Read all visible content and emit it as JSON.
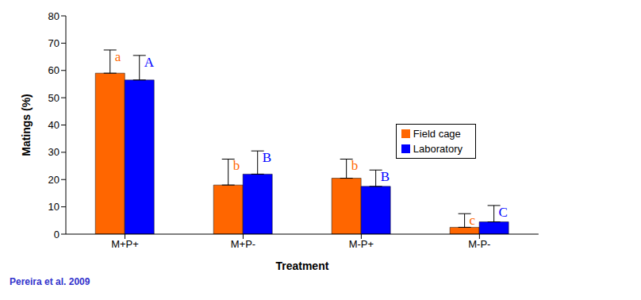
{
  "chart_data": {
    "type": "bar",
    "x_label": "Treatment",
    "y_label": "Matings (%)",
    "categories": [
      "M+P+",
      "M+P-",
      "M-P+",
      "M-P-"
    ],
    "series": [
      {
        "name": "Field cage",
        "color": "#ff6600",
        "values": [
          59,
          18,
          20.5,
          2.5
        ],
        "errors": [
          8.5,
          9.5,
          7,
          5
        ],
        "letters": [
          "a",
          "b",
          "b",
          "c"
        ]
      },
      {
        "name": "Laboratory",
        "color": "#0000ff",
        "values": [
          56.5,
          22,
          17.5,
          4.5
        ],
        "errors": [
          9,
          8.5,
          6,
          6
        ],
        "letters": [
          "A",
          "B",
          "B",
          "C"
        ]
      }
    ],
    "ylim": [
      0,
      80
    ],
    "yticks": [
      0,
      10,
      20,
      30,
      40,
      50,
      60,
      70,
      80
    ],
    "grid": false,
    "legend": "right",
    "annotations": [
      "Pereira et al. 2009"
    ]
  }
}
